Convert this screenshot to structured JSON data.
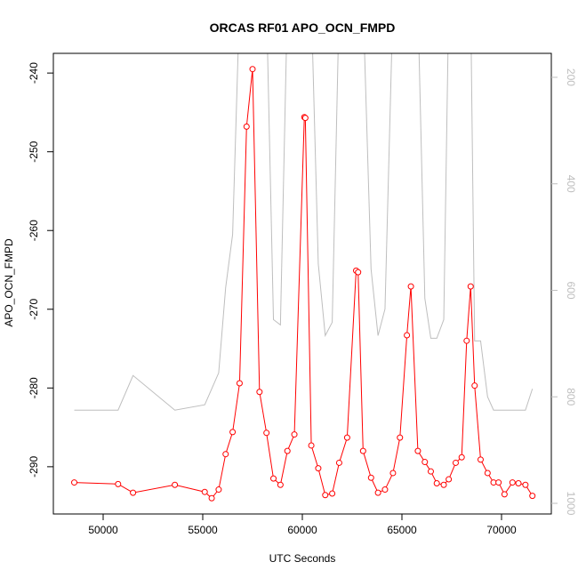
{
  "chart_data": {
    "type": "line",
    "title": "ORCAS RF01 APO_OCN_FMPD",
    "xlabel": "UTC Seconds",
    "ylabel": "APO_OCN_FMPD",
    "xlim": [
      47500,
      72500
    ],
    "ylim": [
      -296,
      -237.5
    ],
    "y2lim": [
      1020,
      155
    ],
    "xticks": [
      50000,
      55000,
      60000,
      65000,
      70000
    ],
    "yticks": [
      -290,
      -280,
      -270,
      -260,
      -250,
      -240
    ],
    "y2ticks": [
      200,
      400,
      600,
      800,
      1000
    ],
    "colors": {
      "primary": "#ff0000",
      "secondary": "#bebebe"
    },
    "series": [
      {
        "axis": "left",
        "style": "line-points",
        "color": "#ff0000",
        "x": [
          48550,
          50750,
          51500,
          53600,
          55100,
          55450,
          55800,
          56150,
          56500,
          56850,
          57200,
          57500,
          57850,
          58200,
          58550,
          58900,
          59250,
          59600,
          60100,
          60150,
          60450,
          60800,
          61150,
          61500,
          61850,
          62250,
          62700,
          62800,
          63050,
          63450,
          63800,
          64150,
          64550,
          64900,
          65250,
          65450,
          65800,
          66150,
          66450,
          66750,
          67100,
          67350,
          67700,
          68000,
          68250,
          68450,
          68650,
          68950,
          69300,
          69600,
          69850,
          70150,
          70550,
          70850,
          71200,
          71550
        ],
        "y": [
          -292.0,
          -292.2,
          -293.3,
          -292.3,
          -293.2,
          -294.0,
          -292.9,
          -288.4,
          -285.6,
          -279.4,
          -246.8,
          -239.5,
          -280.5,
          -285.7,
          -291.5,
          -292.3,
          -288.0,
          -285.9,
          -245.6,
          -245.7,
          -287.3,
          -290.2,
          -293.6,
          -293.4,
          -289.5,
          -286.3,
          -265.1,
          -265.3,
          -288.0,
          -291.4,
          -293.3,
          -292.9,
          -290.8,
          -286.3,
          -273.3,
          -267.1,
          -288.0,
          -289.4,
          -290.6,
          -292.1,
          -292.3,
          -291.6,
          -289.5,
          -288.8,
          -274.0,
          -267.1,
          -279.7,
          -289.1,
          -290.8,
          -292.0,
          -292.0,
          -293.5,
          -292.0,
          -292.1,
          -292.3,
          -293.7
        ]
      },
      {
        "axis": "right",
        "style": "line",
        "color": "#bebebe",
        "x": [
          48550,
          50750,
          51500,
          53600,
          55100,
          55450,
          55800,
          56150,
          56500,
          56850,
          57200,
          57500,
          57850,
          58200,
          58550,
          58900,
          59250,
          59600,
          60100,
          60150,
          60450,
          60800,
          61150,
          61500,
          61850,
          62250,
          62700,
          62800,
          63050,
          63450,
          63800,
          64150,
          64550,
          64900,
          65250,
          65450,
          65800,
          66150,
          66450,
          66750,
          67100,
          67350,
          67700,
          68000,
          68250,
          68450,
          68650,
          68950,
          69300,
          69600,
          69850,
          70150,
          70550,
          70850,
          71200,
          71550
        ],
        "y": [
          825,
          825,
          760,
          825,
          815,
          785,
          755,
          595,
          495,
          60,
          60,
          60,
          60,
          60,
          655,
          665,
          60,
          60,
          60,
          60,
          60,
          550,
          685,
          660,
          60,
          60,
          60,
          60,
          60,
          560,
          685,
          635,
          60,
          60,
          60,
          60,
          60,
          615,
          690,
          690,
          655,
          60,
          60,
          60,
          60,
          60,
          695,
          695,
          800,
          825,
          825,
          825,
          825,
          825,
          825,
          785
        ]
      }
    ]
  }
}
